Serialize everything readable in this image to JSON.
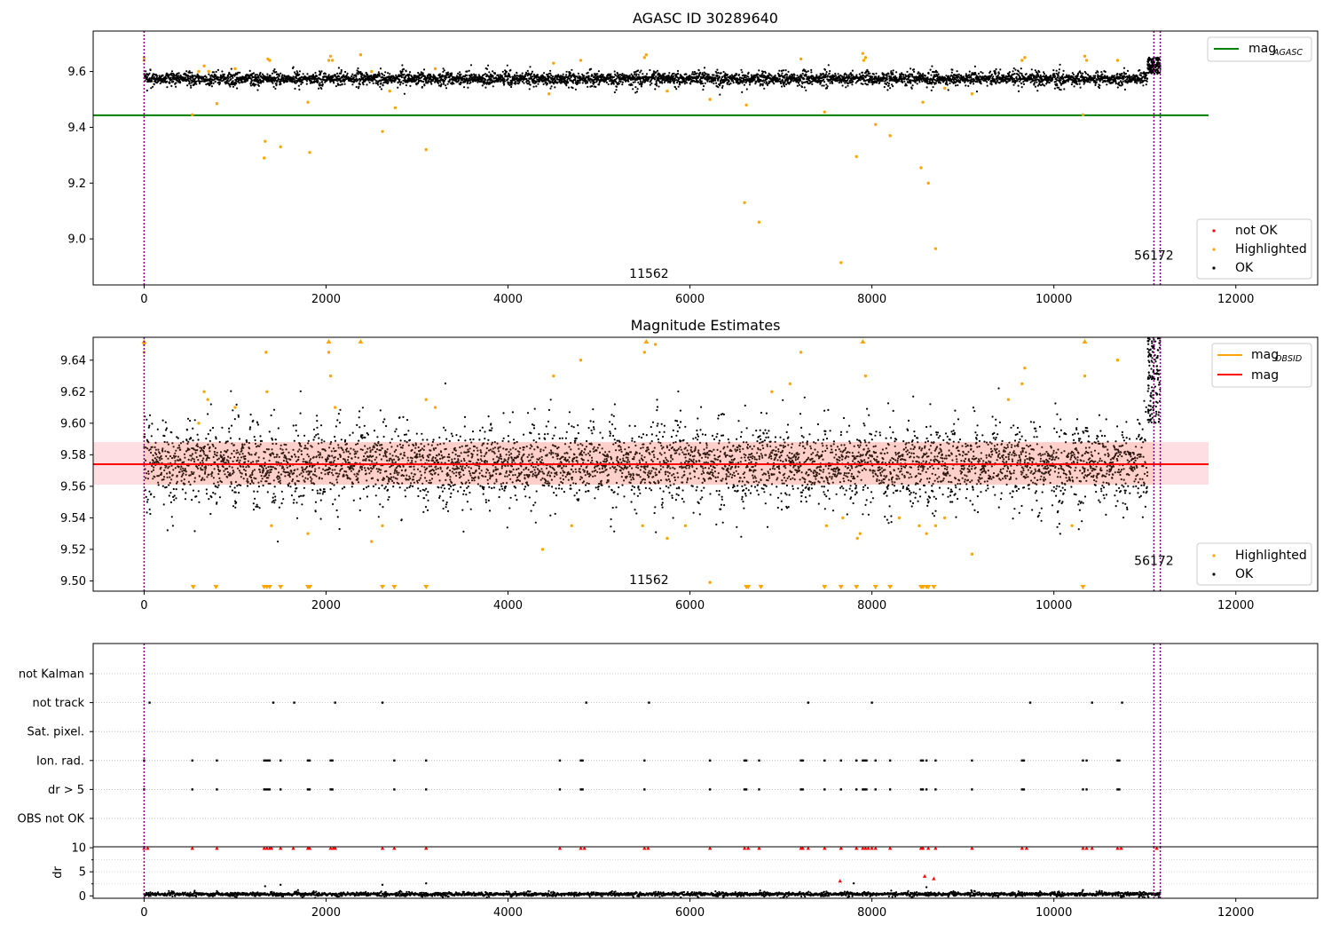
{
  "chart_data": [
    {
      "id": "mag-agasc",
      "type": "scatter",
      "title": "AGASC ID 30289640",
      "xlim": [
        -560,
        12900
      ],
      "ylim": [
        8.835,
        9.745
      ],
      "xticks": [
        0,
        2000,
        4000,
        6000,
        8000,
        10000,
        12000
      ],
      "xtick_labels": [
        "0",
        "2000",
        "4000",
        "6000",
        "8000",
        "10000",
        "12000"
      ],
      "yticks": [
        9.0,
        9.2,
        9.4,
        9.6
      ],
      "ytick_labels": [
        "9.0",
        "9.2",
        "9.4",
        "9.6"
      ],
      "ok_band": {
        "center": 9.574,
        "spread": 0.012,
        "x_start": 0,
        "x_end": 11100,
        "end_rise": [
          11030,
          11170,
          9.59,
          9.65
        ]
      },
      "highlighted_points": [
        [
          0,
          9.65
        ],
        [
          0,
          9.64
        ],
        [
          530,
          9.445
        ],
        [
          600,
          9.6
        ],
        [
          660,
          9.62
        ],
        [
          710,
          9.6
        ],
        [
          800,
          9.485
        ],
        [
          1000,
          9.61
        ],
        [
          1320,
          9.29
        ],
        [
          1330,
          9.35
        ],
        [
          1360,
          9.645
        ],
        [
          1380,
          9.64
        ],
        [
          1500,
          9.33
        ],
        [
          1800,
          9.49
        ],
        [
          1820,
          9.31
        ],
        [
          2030,
          9.64
        ],
        [
          2050,
          9.655
        ],
        [
          2070,
          9.64
        ],
        [
          2380,
          9.66
        ],
        [
          2500,
          9.6
        ],
        [
          2620,
          9.385
        ],
        [
          2700,
          9.53
        ],
        [
          2760,
          9.47
        ],
        [
          3100,
          9.32
        ],
        [
          3200,
          9.61
        ],
        [
          4450,
          9.52
        ],
        [
          4500,
          9.63
        ],
        [
          4800,
          9.64
        ],
        [
          5500,
          9.65
        ],
        [
          5520,
          9.66
        ],
        [
          5750,
          9.53
        ],
        [
          6220,
          9.5
        ],
        [
          6600,
          9.13
        ],
        [
          6620,
          9.48
        ],
        [
          6760,
          9.06
        ],
        [
          7220,
          9.645
        ],
        [
          7480,
          9.455
        ],
        [
          7660,
          8.915
        ],
        [
          7830,
          9.295
        ],
        [
          7900,
          9.665
        ],
        [
          7910,
          9.64
        ],
        [
          7930,
          9.65
        ],
        [
          8040,
          9.41
        ],
        [
          8200,
          9.37
        ],
        [
          8540,
          9.255
        ],
        [
          8560,
          9.49
        ],
        [
          8620,
          9.2
        ],
        [
          8700,
          8.965
        ],
        [
          8800,
          9.54
        ],
        [
          9100,
          9.52
        ],
        [
          9650,
          9.64
        ],
        [
          9680,
          9.65
        ],
        [
          10320,
          9.445
        ],
        [
          10340,
          9.655
        ],
        [
          10360,
          9.64
        ],
        [
          10700,
          9.64
        ]
      ],
      "hlines": [
        {
          "name": "mag_AGASC",
          "y": 9.443,
          "color": "#008000",
          "x_start": -560,
          "x_end": 11700
        }
      ],
      "vlines": [
        0,
        11100,
        11170
      ],
      "annotations": [
        {
          "text": "11562",
          "x": 5550,
          "y": 8.86
        },
        {
          "text": "56172",
          "x": 11100,
          "y": 8.925
        }
      ],
      "legend_lines": [
        {
          "label": "mag",
          "sub": "AGASC",
          "color": "#008000"
        }
      ],
      "legend_markers": [
        {
          "label": "not OK",
          "color": "#ff0000"
        },
        {
          "label": "Highlighted",
          "color": "#ffa500"
        },
        {
          "label": "OK",
          "color": "#000000"
        }
      ]
    },
    {
      "id": "mag-estimates",
      "type": "scatter",
      "title": "Magnitude Estimates",
      "xlim": [
        -560,
        12900
      ],
      "ylim": [
        9.4935,
        9.6545
      ],
      "xticks": [
        0,
        2000,
        4000,
        6000,
        8000,
        10000,
        12000
      ],
      "xtick_labels": [
        "0",
        "2000",
        "4000",
        "6000",
        "8000",
        "10000",
        "12000"
      ],
      "yticks": [
        9.5,
        9.52,
        9.54,
        9.56,
        9.58,
        9.6,
        9.62,
        9.64
      ],
      "ytick_labels": [
        "9.50",
        "9.52",
        "9.54",
        "9.56",
        "9.58",
        "9.60",
        "9.62",
        "9.64"
      ],
      "ok_band": {
        "center": 9.574,
        "spread": 0.012,
        "x_start": 0,
        "x_end": 11100,
        "end_rise": [
          11030,
          11170,
          9.6,
          9.655
        ]
      },
      "shade": {
        "y1": 9.561,
        "y2": 9.588,
        "x_start": -560,
        "x_end": 11700,
        "color": "#ffb6c1"
      },
      "hlines": [
        {
          "name": "mag_OBSID",
          "y": 9.574,
          "color": "#ffa500",
          "x_start": -560,
          "x_end": 11700
        },
        {
          "name": "mag",
          "y": 9.574,
          "color": "#ff0000",
          "x_start": -560,
          "x_end": 11700
        }
      ],
      "highlighted_points": [
        [
          0,
          9.645
        ],
        [
          0,
          9.65
        ],
        [
          600,
          9.6
        ],
        [
          660,
          9.62
        ],
        [
          700,
          9.615
        ],
        [
          1000,
          9.61
        ],
        [
          1340,
          9.645
        ],
        [
          1350,
          9.62
        ],
        [
          1400,
          9.535
        ],
        [
          1800,
          9.53
        ],
        [
          2030,
          9.645
        ],
        [
          2050,
          9.63
        ],
        [
          2100,
          9.61
        ],
        [
          2500,
          9.525
        ],
        [
          2620,
          9.535
        ],
        [
          3100,
          9.615
        ],
        [
          3200,
          9.61
        ],
        [
          4380,
          9.52
        ],
        [
          4500,
          9.63
        ],
        [
          4700,
          9.535
        ],
        [
          4800,
          9.64
        ],
        [
          5480,
          9.535
        ],
        [
          5500,
          9.645
        ],
        [
          5620,
          9.65
        ],
        [
          5750,
          9.527
        ],
        [
          5950,
          9.535
        ],
        [
          6220,
          9.499
        ],
        [
          6900,
          9.62
        ],
        [
          7100,
          9.625
        ],
        [
          7220,
          9.645
        ],
        [
          7500,
          9.535
        ],
        [
          7680,
          9.54
        ],
        [
          7840,
          9.527
        ],
        [
          7870,
          9.53
        ],
        [
          7900,
          9.655
        ],
        [
          7930,
          9.63
        ],
        [
          8300,
          9.54
        ],
        [
          8520,
          9.535
        ],
        [
          8600,
          9.53
        ],
        [
          8700,
          9.535
        ],
        [
          8800,
          9.54
        ],
        [
          9100,
          9.517
        ],
        [
          9500,
          9.615
        ],
        [
          9650,
          9.625
        ],
        [
          9680,
          9.635
        ],
        [
          10200,
          9.535
        ],
        [
          10340,
          9.63
        ],
        [
          10700,
          9.64
        ]
      ],
      "clipped_low_markers": [
        540,
        790,
        1320,
        1350,
        1380,
        1500,
        1800,
        1820,
        2620,
        2750,
        3100,
        6620,
        6640,
        6780,
        7480,
        7660,
        7830,
        8040,
        8200,
        8540,
        8560,
        8600,
        8620,
        8680,
        10320
      ],
      "clipped_high_markers": [
        0,
        2030,
        2380,
        5520,
        7900,
        10340
      ],
      "vlines": [
        0,
        11100,
        11170
      ],
      "annotations": [
        {
          "text": "11562",
          "x": 5550,
          "y": 9.498
        },
        {
          "text": "56172",
          "x": 11100,
          "y": 9.51
        }
      ],
      "legend_lines": [
        {
          "label": "mag",
          "sub": "OBSID",
          "color": "#ffa500"
        },
        {
          "label": "mag",
          "sub": "",
          "color": "#ff0000"
        }
      ],
      "legend_markers": [
        {
          "label": "Highlighted",
          "color": "#ffa500"
        },
        {
          "label": "OK",
          "color": "#000000"
        }
      ]
    },
    {
      "id": "flags",
      "type": "scatter",
      "title": "",
      "xlim": [
        -560,
        12900
      ],
      "categories": [
        "not Kalman",
        "not track",
        "Sat. pixel.",
        "Ion. rad.",
        "dr > 5",
        "OBS not OK"
      ],
      "flag_points": {
        "not track": [
          60,
          1420,
          1650,
          2100,
          2620,
          4860,
          5550,
          7300,
          8000,
          9740,
          10420,
          10750
        ],
        "Ion. rad.": [
          0,
          530,
          800,
          1320,
          1340,
          1360,
          1380,
          1500,
          1800,
          1820,
          2050,
          2070,
          2750,
          3100,
          4570,
          4800,
          4820,
          5500,
          6220,
          6600,
          6620,
          6760,
          7220,
          7240,
          7480,
          7660,
          7830,
          7900,
          7920,
          7940,
          8040,
          8200,
          8540,
          8560,
          8600,
          8700,
          9100,
          9650,
          9670,
          10320,
          10360,
          10700,
          10720
        ],
        "dr > 5": [
          0,
          530,
          800,
          1320,
          1340,
          1360,
          1380,
          1500,
          1800,
          1820,
          2050,
          2070,
          2750,
          3100,
          4570,
          4800,
          4820,
          5500,
          6220,
          6600,
          6620,
          6760,
          7220,
          7240,
          7480,
          7660,
          7830,
          7900,
          7920,
          7940,
          8040,
          8200,
          8540,
          8560,
          8600,
          8700,
          9100,
          9650,
          9670,
          10320,
          10360,
          10700,
          10720
        ]
      },
      "vlines": [
        0,
        11100,
        11170
      ]
    },
    {
      "id": "dr",
      "type": "scatter",
      "title": "",
      "ylabel": "dr",
      "xlim": [
        -560,
        12900
      ],
      "ylim": [
        -0.5,
        10.2
      ],
      "xticks": [
        0,
        2000,
        4000,
        6000,
        8000,
        10000,
        12000
      ],
      "xtick_labels": [
        "0",
        "2000",
        "4000",
        "6000",
        "8000",
        "10000",
        "12000"
      ],
      "yticks": [
        0,
        5,
        10
      ],
      "ytick_labels": [
        "0",
        "5",
        "10"
      ],
      "ok_band": {
        "center": 0.35,
        "spread": 0.2,
        "x_start": 0,
        "x_end": 11170
      },
      "red_points": [
        [
          0,
          9.9
        ],
        [
          40,
          9.9
        ],
        [
          530,
          9.9
        ],
        [
          800,
          9.9
        ],
        [
          1320,
          9.9
        ],
        [
          1350,
          9.9
        ],
        [
          1380,
          9.9
        ],
        [
          1400,
          9.9
        ],
        [
          1500,
          9.9
        ],
        [
          1640,
          9.9
        ],
        [
          1800,
          9.9
        ],
        [
          1820,
          9.9
        ],
        [
          2050,
          9.9
        ],
        [
          2080,
          9.9
        ],
        [
          2100,
          9.9
        ],
        [
          2620,
          9.9
        ],
        [
          2750,
          9.9
        ],
        [
          3100,
          9.9
        ],
        [
          4570,
          9.9
        ],
        [
          4800,
          9.9
        ],
        [
          4840,
          9.9
        ],
        [
          5500,
          9.9
        ],
        [
          5540,
          9.9
        ],
        [
          6220,
          9.9
        ],
        [
          6600,
          9.9
        ],
        [
          6640,
          9.9
        ],
        [
          6760,
          9.9
        ],
        [
          7220,
          9.9
        ],
        [
          7240,
          9.9
        ],
        [
          7300,
          9.9
        ],
        [
          7480,
          9.9
        ],
        [
          7660,
          9.9
        ],
        [
          7830,
          9.9
        ],
        [
          7900,
          9.9
        ],
        [
          7930,
          9.9
        ],
        [
          7960,
          9.9
        ],
        [
          8000,
          9.9
        ],
        [
          8040,
          9.9
        ],
        [
          8200,
          9.9
        ],
        [
          8540,
          9.9
        ],
        [
          8560,
          9.9
        ],
        [
          8620,
          9.9
        ],
        [
          8700,
          9.9
        ],
        [
          9100,
          9.9
        ],
        [
          9650,
          9.9
        ],
        [
          9700,
          9.9
        ],
        [
          10320,
          9.9
        ],
        [
          10360,
          9.9
        ],
        [
          10420,
          9.9
        ],
        [
          10700,
          9.9
        ],
        [
          10740,
          9.9
        ],
        [
          11130,
          9.9
        ],
        [
          7650,
          3.1
        ],
        [
          8580,
          4.1
        ],
        [
          8680,
          3.6
        ]
      ],
      "black_high_points": [
        [
          1330,
          2.0
        ],
        [
          1500,
          2.3
        ],
        [
          2620,
          2.3
        ],
        [
          3100,
          2.6
        ],
        [
          7800,
          2.6
        ],
        [
          8600,
          1.8
        ],
        [
          10320,
          1.2
        ]
      ],
      "vlines": [
        0,
        11100,
        11170
      ]
    }
  ]
}
